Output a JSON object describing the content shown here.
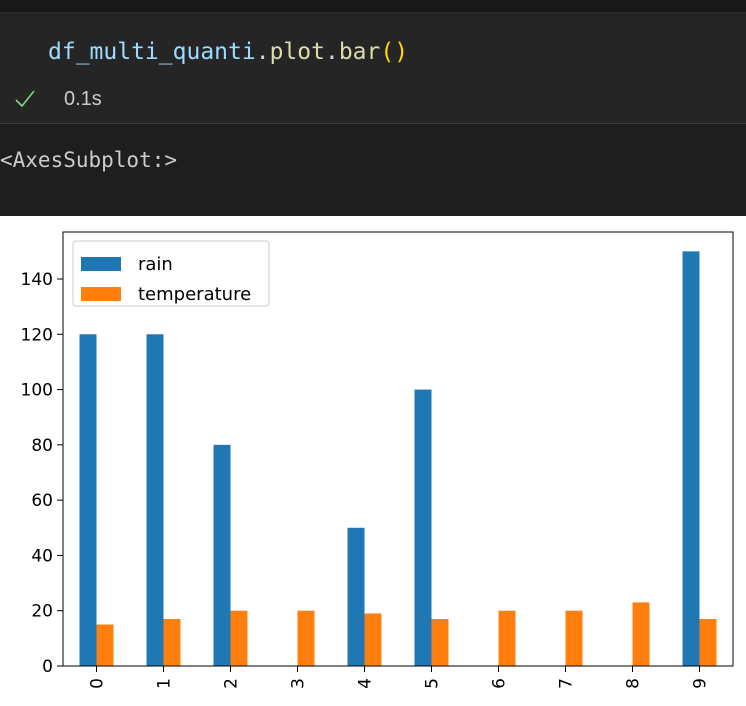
{
  "cell": {
    "code_tokens": [
      "df_multi_quanti",
      ".",
      "plot",
      ".",
      "bar",
      "()"
    ],
    "status": "0.1s",
    "output_text": "<AxesSubplot:>"
  },
  "colors": {
    "rain": "#1f77b4",
    "temperature": "#ff7f0e"
  },
  "chart_data": {
    "type": "bar",
    "categories": [
      "0",
      "1",
      "2",
      "3",
      "4",
      "5",
      "6",
      "7",
      "8",
      "9"
    ],
    "series": [
      {
        "name": "rain",
        "values": [
          120,
          120,
          80,
          null,
          50,
          100,
          null,
          null,
          null,
          150
        ]
      },
      {
        "name": "temperature",
        "values": [
          15,
          17,
          20,
          20,
          19,
          17,
          20,
          20,
          23,
          17
        ]
      }
    ],
    "yticks": [
      0,
      20,
      40,
      60,
      80,
      100,
      120,
      140
    ],
    "ylim": [
      0,
      157
    ],
    "legend_position": "top-left",
    "grid": false,
    "title": "",
    "xlabel": "",
    "ylabel": ""
  }
}
